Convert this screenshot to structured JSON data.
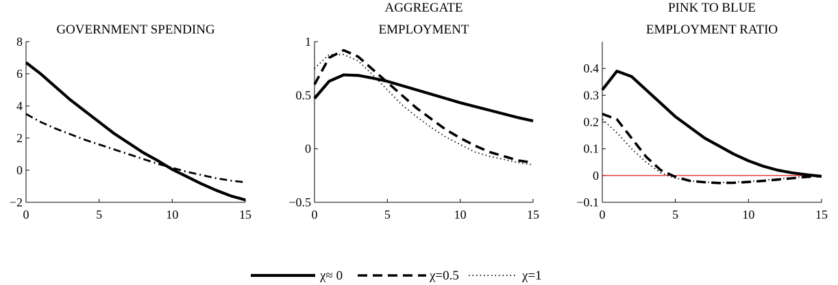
{
  "colors": {
    "axis": "#000000",
    "series": "#000000",
    "zero_line": "#e00000"
  },
  "chart_data": [
    {
      "type": "line",
      "title": "GOVERNMENT SPENDING",
      "title_lines": [
        "GOVERNMENT SPENDING"
      ],
      "xlim": [
        0,
        15
      ],
      "ylim": [
        -2,
        8
      ],
      "xticks": [
        0,
        5,
        10,
        15
      ],
      "yticks": [
        -2,
        0,
        2,
        4,
        6,
        8
      ],
      "ytick_labels": [
        "−2",
        "0",
        "2",
        "4",
        "6",
        "8"
      ],
      "zero_line": false,
      "series": [
        {
          "style": "solid",
          "x": [
            0,
            1,
            2,
            3,
            4,
            5,
            6,
            7,
            8,
            9,
            10,
            11,
            12,
            13,
            14,
            15
          ],
          "values": [
            6.7,
            6.0,
            5.2,
            4.4,
            3.7,
            3.0,
            2.3,
            1.7,
            1.1,
            0.6,
            0.05,
            -0.4,
            -0.85,
            -1.25,
            -1.6,
            -1.85
          ]
        },
        {
          "style": "dashdot",
          "x": [
            0,
            1,
            2,
            3,
            4,
            5,
            6,
            7,
            8,
            9,
            10,
            11,
            12,
            13,
            14,
            15
          ],
          "values": [
            3.5,
            3.0,
            2.6,
            2.25,
            1.9,
            1.6,
            1.3,
            1.0,
            0.7,
            0.4,
            0.15,
            -0.1,
            -0.3,
            -0.5,
            -0.65,
            -0.75
          ]
        }
      ]
    },
    {
      "type": "line",
      "title": "AGGREGATE EMPLOYMENT",
      "title_lines": [
        "AGGREGATE",
        "EMPLOYMENT"
      ],
      "xlim": [
        0,
        15
      ],
      "ylim": [
        -0.5,
        1
      ],
      "xticks": [
        0,
        5,
        10,
        15
      ],
      "yticks": [
        -0.5,
        0,
        0.5,
        1
      ],
      "ytick_labels": [
        "−0.5",
        "0",
        "0.5",
        "1"
      ],
      "zero_line": false,
      "series": [
        {
          "style": "solid",
          "x": [
            0,
            1,
            2,
            3,
            4,
            5,
            6,
            7,
            8,
            9,
            10,
            11,
            12,
            13,
            14,
            15
          ],
          "values": [
            0.47,
            0.63,
            0.69,
            0.685,
            0.66,
            0.63,
            0.59,
            0.55,
            0.51,
            0.47,
            0.43,
            0.395,
            0.36,
            0.325,
            0.29,
            0.26
          ]
        },
        {
          "style": "dashed",
          "x": [
            0,
            1,
            2,
            3,
            4,
            5,
            6,
            7,
            8,
            9,
            10,
            11,
            12,
            13,
            14,
            15
          ],
          "values": [
            0.6,
            0.85,
            0.92,
            0.86,
            0.74,
            0.62,
            0.5,
            0.38,
            0.28,
            0.18,
            0.1,
            0.03,
            -0.03,
            -0.07,
            -0.11,
            -0.13
          ]
        },
        {
          "style": "dotted",
          "x": [
            0,
            1,
            2,
            3,
            4,
            5,
            6,
            7,
            8,
            9,
            10,
            11,
            12,
            13,
            14,
            15
          ],
          "values": [
            0.75,
            0.88,
            0.88,
            0.82,
            0.69,
            0.55,
            0.41,
            0.3,
            0.2,
            0.11,
            0.04,
            -0.03,
            -0.07,
            -0.1,
            -0.13,
            -0.15
          ]
        }
      ]
    },
    {
      "type": "line",
      "title": "PINK TO BLUE EMPLOYMENT RATIO",
      "title_lines": [
        "PINK TO BLUE",
        "EMPLOYMENT RATIO"
      ],
      "xlim": [
        0,
        15
      ],
      "ylim": [
        -0.1,
        0.5
      ],
      "xticks": [
        0,
        5,
        10,
        15
      ],
      "yticks": [
        -0.1,
        0,
        0.1,
        0.2,
        0.3,
        0.4
      ],
      "ytick_labels": [
        "−0.1",
        "0",
        "0.1",
        "0.2",
        "0.3",
        "0.4"
      ],
      "zero_line": true,
      "series": [
        {
          "style": "solid",
          "x": [
            0,
            1,
            2,
            3,
            4,
            5,
            6,
            7,
            8,
            9,
            10,
            11,
            12,
            13,
            14,
            15
          ],
          "values": [
            0.32,
            0.39,
            0.37,
            0.32,
            0.27,
            0.22,
            0.18,
            0.14,
            0.11,
            0.08,
            0.055,
            0.035,
            0.02,
            0.01,
            0.003,
            -0.003
          ]
        },
        {
          "style": "dashed",
          "x": [
            0,
            1,
            2,
            3,
            4,
            5,
            6,
            7,
            8,
            9,
            10,
            11,
            12,
            13,
            14,
            15
          ],
          "values": [
            0.23,
            0.21,
            0.14,
            0.07,
            0.02,
            -0.005,
            -0.02,
            -0.025,
            -0.028,
            -0.027,
            -0.024,
            -0.02,
            -0.015,
            -0.01,
            -0.005,
            -0.002
          ]
        },
        {
          "style": "dotted",
          "x": [
            0,
            1,
            2,
            3,
            4,
            5,
            6,
            7,
            8,
            9,
            10,
            11,
            12,
            13,
            14,
            15
          ],
          "values": [
            0.21,
            0.16,
            0.1,
            0.05,
            0.01,
            -0.01,
            -0.02,
            -0.025,
            -0.026,
            -0.025,
            -0.022,
            -0.018,
            -0.013,
            -0.008,
            -0.004,
            -0.001
          ]
        }
      ]
    }
  ],
  "legend": [
    {
      "style": "solid",
      "label": "χ≈ 0"
    },
    {
      "style": "dashed",
      "label": "χ=0.5"
    },
    {
      "style": "dotted",
      "label": "χ=1"
    }
  ]
}
